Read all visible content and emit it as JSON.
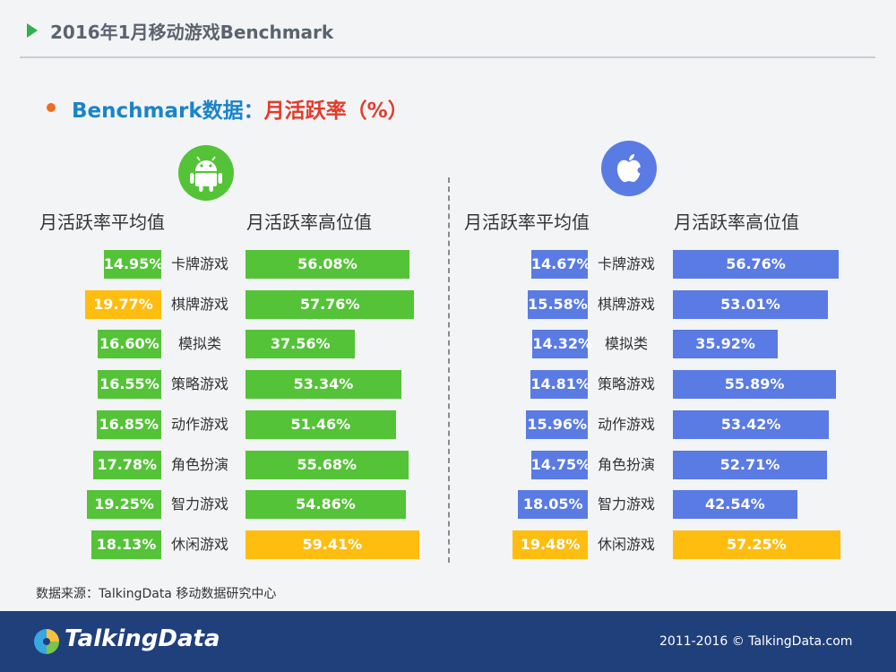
{
  "header": {
    "title": "2016年1月移动游戏Benchmark"
  },
  "subtitle": {
    "part1": "Benchmark数据：",
    "part2": "月活跃率（%）"
  },
  "colors": {
    "android": "#54c337",
    "ios": "#5a7be3",
    "highlight": "#ffbd0f",
    "accent_blue": "#1a84c8",
    "accent_red": "#e23b2b"
  },
  "icons": {
    "android": "android-icon",
    "ios": "apple-icon"
  },
  "chart_data": {
    "type": "bar",
    "categories": [
      "卡牌游戏",
      "棋牌游戏",
      "模拟类",
      "策略游戏",
      "动作游戏",
      "角色扮演",
      "智力游戏",
      "休闲游戏"
    ],
    "units": "%",
    "panels": [
      {
        "platform": "Android",
        "series": [
          {
            "name": "月活跃率平均值",
            "values": [
              14.95,
              19.77,
              16.6,
              16.55,
              16.85,
              17.78,
              19.25,
              18.13
            ],
            "labels": [
              "14.95%",
              "19.77%",
              "16.60%",
              "16.55%",
              "16.85%",
              "17.78%",
              "19.25%",
              "18.13%"
            ]
          },
          {
            "name": "月活跃率高位值",
            "values": [
              56.08,
              57.76,
              37.56,
              53.34,
              51.46,
              55.68,
              54.86,
              59.41
            ],
            "labels": [
              "56.08%",
              "57.76%",
              "37.56%",
              "53.34%",
              "51.46%",
              "55.68%",
              "54.86%",
              "59.41%"
            ]
          }
        ]
      },
      {
        "platform": "iOS",
        "series": [
          {
            "name": "月活跃率平均值",
            "values": [
              14.67,
              15.58,
              14.32,
              14.81,
              15.96,
              14.75,
              18.05,
              19.48
            ],
            "labels": [
              "14.67%",
              "15.58%",
              "14.32%",
              "14.81%",
              "15.96%",
              "14.75%",
              "18.05%",
              "19.48%"
            ]
          },
          {
            "name": "月活跃率高位值",
            "values": [
              56.76,
              53.01,
              35.92,
              55.89,
              53.42,
              52.71,
              42.54,
              57.25
            ],
            "labels": [
              "56.76%",
              "53.01%",
              "35.92%",
              "55.89%",
              "53.42%",
              "52.71%",
              "42.54%",
              "57.25%"
            ]
          }
        ]
      }
    ],
    "highlights": {
      "android_avg_max": "棋牌游戏",
      "android_high_max": "休闲游戏",
      "ios_avg_max": "休闲游戏",
      "ios_high_max": "休闲游戏"
    }
  },
  "source": "数据来源：TalkingData 移动数据研究中心",
  "footer": {
    "brand": "TalkingData",
    "copyright": "2011-2016 © TalkingData.com"
  }
}
